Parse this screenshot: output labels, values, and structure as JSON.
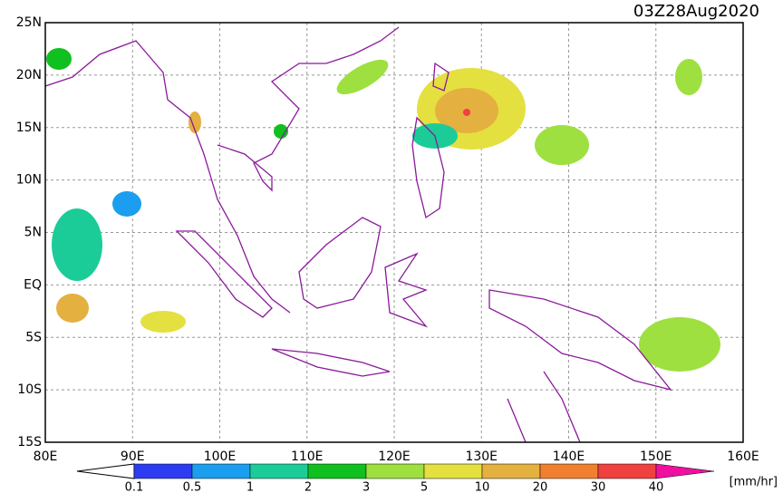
{
  "title": "03Z28Aug2020",
  "map": {
    "lat_labels": [
      "25N",
      "20N",
      "15N",
      "10N",
      "5N",
      "EQ",
      "5S",
      "10S",
      "15S"
    ],
    "lon_labels": [
      "80E",
      "90E",
      "100E",
      "110E",
      "120E",
      "130E",
      "140E",
      "150E",
      "160E"
    ]
  },
  "colorbar": {
    "labels": [
      "0.1",
      "0.5",
      "1",
      "2",
      "3",
      "5",
      "10",
      "20",
      "30",
      "40"
    ],
    "unit": "[mm/hr]",
    "under_color": "#ffffff",
    "colors": [
      "#2c3cf0",
      "#1c9ef0",
      "#1ccc98",
      "#10c020",
      "#9ee040",
      "#e4e040",
      "#e4b040",
      "#f08030",
      "#f04040",
      "#f010a0"
    ]
  }
}
